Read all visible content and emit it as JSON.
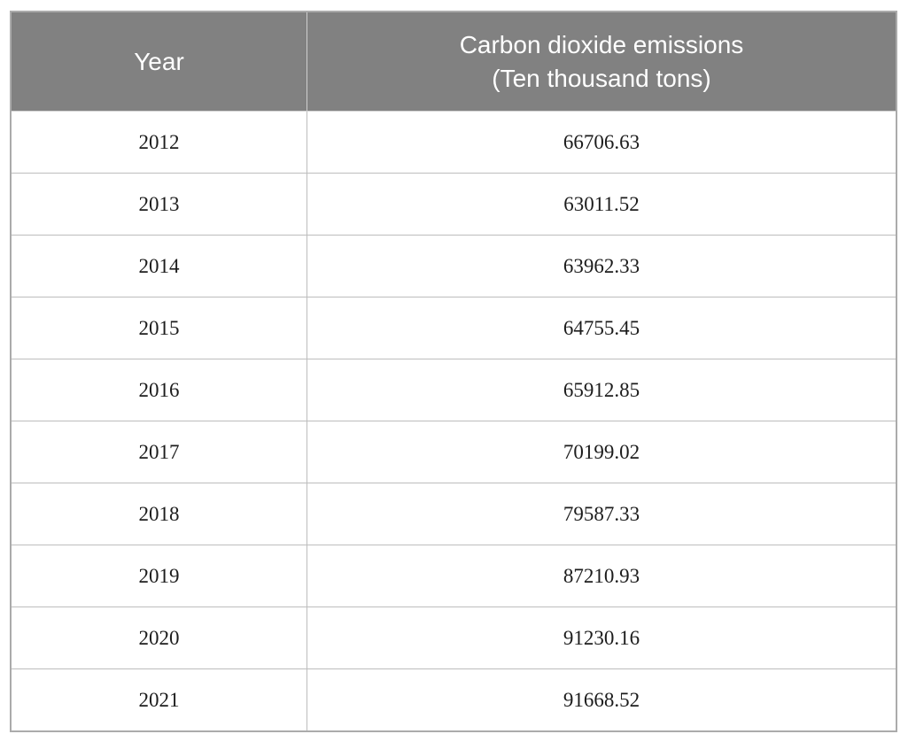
{
  "table": {
    "header": {
      "year_label": "Year",
      "emissions_label_line1": "Carbon dioxide emissions",
      "emissions_label_line2": "(Ten thousand tons)"
    },
    "rows": [
      {
        "year": "2012",
        "value": "66706.63"
      },
      {
        "year": "2013",
        "value": "63011.52"
      },
      {
        "year": "2014",
        "value": "63962.33"
      },
      {
        "year": "2015",
        "value": "64755.45"
      },
      {
        "year": "2016",
        "value": "65912.85"
      },
      {
        "year": "2017",
        "value": "70199.02"
      },
      {
        "year": "2018",
        "value": "79587.33"
      },
      {
        "year": "2019",
        "value": "87210.93"
      },
      {
        "year": "2020",
        "value": "91230.16"
      },
      {
        "year": "2021",
        "value": "91668.52"
      }
    ]
  },
  "colors": {
    "header_background": "#818181",
    "header_text": "#ffffff",
    "outer_border": "#ababab",
    "grid_line": "#bdbdbd",
    "body_text": "#1c1c1c"
  },
  "chart_data": {
    "type": "table",
    "title": "",
    "columns": [
      "Year",
      "Carbon dioxide emissions (Ten thousand tons)"
    ],
    "categories": [
      "2012",
      "2013",
      "2014",
      "2015",
      "2016",
      "2017",
      "2018",
      "2019",
      "2020",
      "2021"
    ],
    "values": [
      66706.63,
      63011.52,
      63962.33,
      64755.45,
      65912.85,
      70199.02,
      79587.33,
      87210.93,
      91230.16,
      91668.52
    ],
    "units": "Ten thousand tons"
  }
}
